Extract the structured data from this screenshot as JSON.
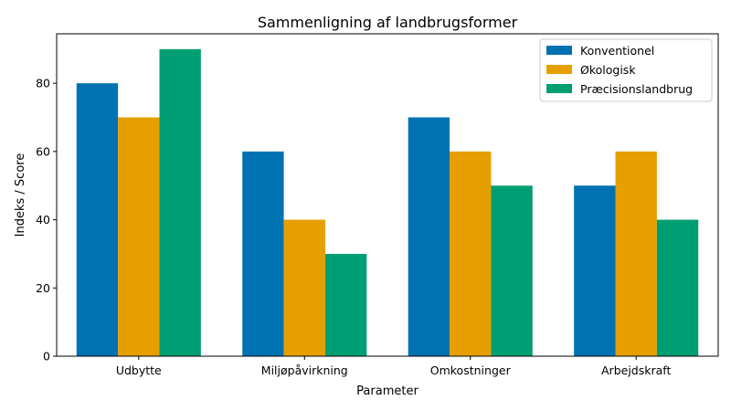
{
  "chart_data": {
    "type": "bar",
    "title": "Sammenligning af landbrugsformer",
    "xlabel": "Parameter",
    "ylabel": "Indeks / Score",
    "categories": [
      "Udbytte",
      "Miljøpåvirkning",
      "Omkostninger",
      "Arbejdskraft"
    ],
    "series": [
      {
        "name": "Konventionel",
        "color": "#0072B2",
        "values": [
          80,
          60,
          70,
          50
        ]
      },
      {
        "name": "Økologisk",
        "color": "#E69F00",
        "values": [
          70,
          40,
          60,
          60
        ]
      },
      {
        "name": "Præcisionslandbrug",
        "color": "#009E73",
        "values": [
          90,
          30,
          50,
          40
        ]
      }
    ],
    "ylim": [
      0,
      94.5
    ],
    "yticks": [
      0,
      20,
      40,
      60,
      80
    ],
    "grid": false,
    "legend_position": "top-right"
  }
}
